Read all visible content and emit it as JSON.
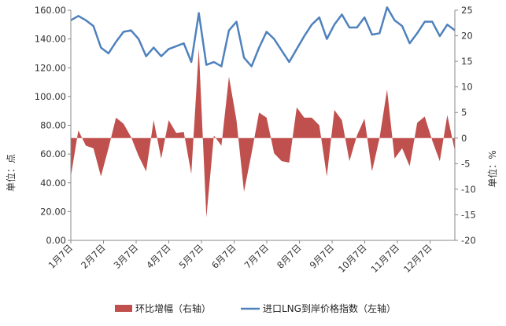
{
  "chart_data": {
    "type": "line",
    "title": "",
    "y_left_label": "单位：点",
    "y_right_label": "单位：%",
    "y_left_lim": [
      0,
      160
    ],
    "y_left_ticks": [
      "0.00",
      "20.00",
      "40.00",
      "60.00",
      "80.00",
      "100.00",
      "120.00",
      "140.00",
      "160.00"
    ],
    "y_right_lim": [
      -20,
      25
    ],
    "y_right_ticks": [
      "-20",
      "-15",
      "-10",
      "-5",
      "0",
      "5",
      "10",
      "15",
      "20",
      "25"
    ],
    "x_tick_labels": [
      "1月7日",
      "2月7日",
      "3月7日",
      "4月7日",
      "5月7日",
      "6月7日",
      "7月7日",
      "8月7日",
      "9月7日",
      "10月7日",
      "11月7日",
      "12月7日"
    ],
    "grid": false,
    "legend_position": "bottom",
    "series": [
      {
        "name": "环比增幅（右轴）",
        "axis": "right",
        "kind": "area",
        "color": "#C0504D",
        "values": [
          -7.5,
          1.5,
          -1.5,
          -2.0,
          -7.5,
          -2.0,
          4.0,
          2.8,
          0.2,
          -3.5,
          -6.5,
          3.5,
          -4.0,
          3.5,
          1.0,
          1.2,
          -7.0,
          17.5,
          -15.5,
          0.5,
          -1.5,
          12.0,
          3.5,
          -10.5,
          -3.0,
          5.0,
          4.0,
          -3.0,
          -4.5,
          -4.8,
          6.0,
          4.0,
          4.0,
          2.5,
          -7.5,
          5.5,
          3.5,
          -4.5,
          0.5,
          3.8,
          -6.5,
          0.0,
          9.5,
          -4.0,
          -2.0,
          -5.5,
          3.0,
          4.2,
          -0.5,
          -4.5,
          4.5,
          -2.5
        ]
      },
      {
        "name": "进口LNG到岸价格指数（左轴）",
        "axis": "left",
        "kind": "line",
        "color": "#4F81BD",
        "values": [
          153,
          156,
          153,
          149,
          134,
          130,
          138,
          145,
          146,
          140,
          128,
          134,
          128,
          133,
          135,
          137,
          124,
          158,
          122,
          124,
          121,
          146,
          152,
          127,
          121,
          134,
          145,
          140,
          132,
          124,
          133,
          142,
          150,
          155,
          140,
          150,
          157,
          148,
          148,
          155,
          143,
          144,
          162,
          153,
          149,
          137,
          144,
          152,
          152,
          142,
          150,
          146
        ]
      }
    ]
  }
}
